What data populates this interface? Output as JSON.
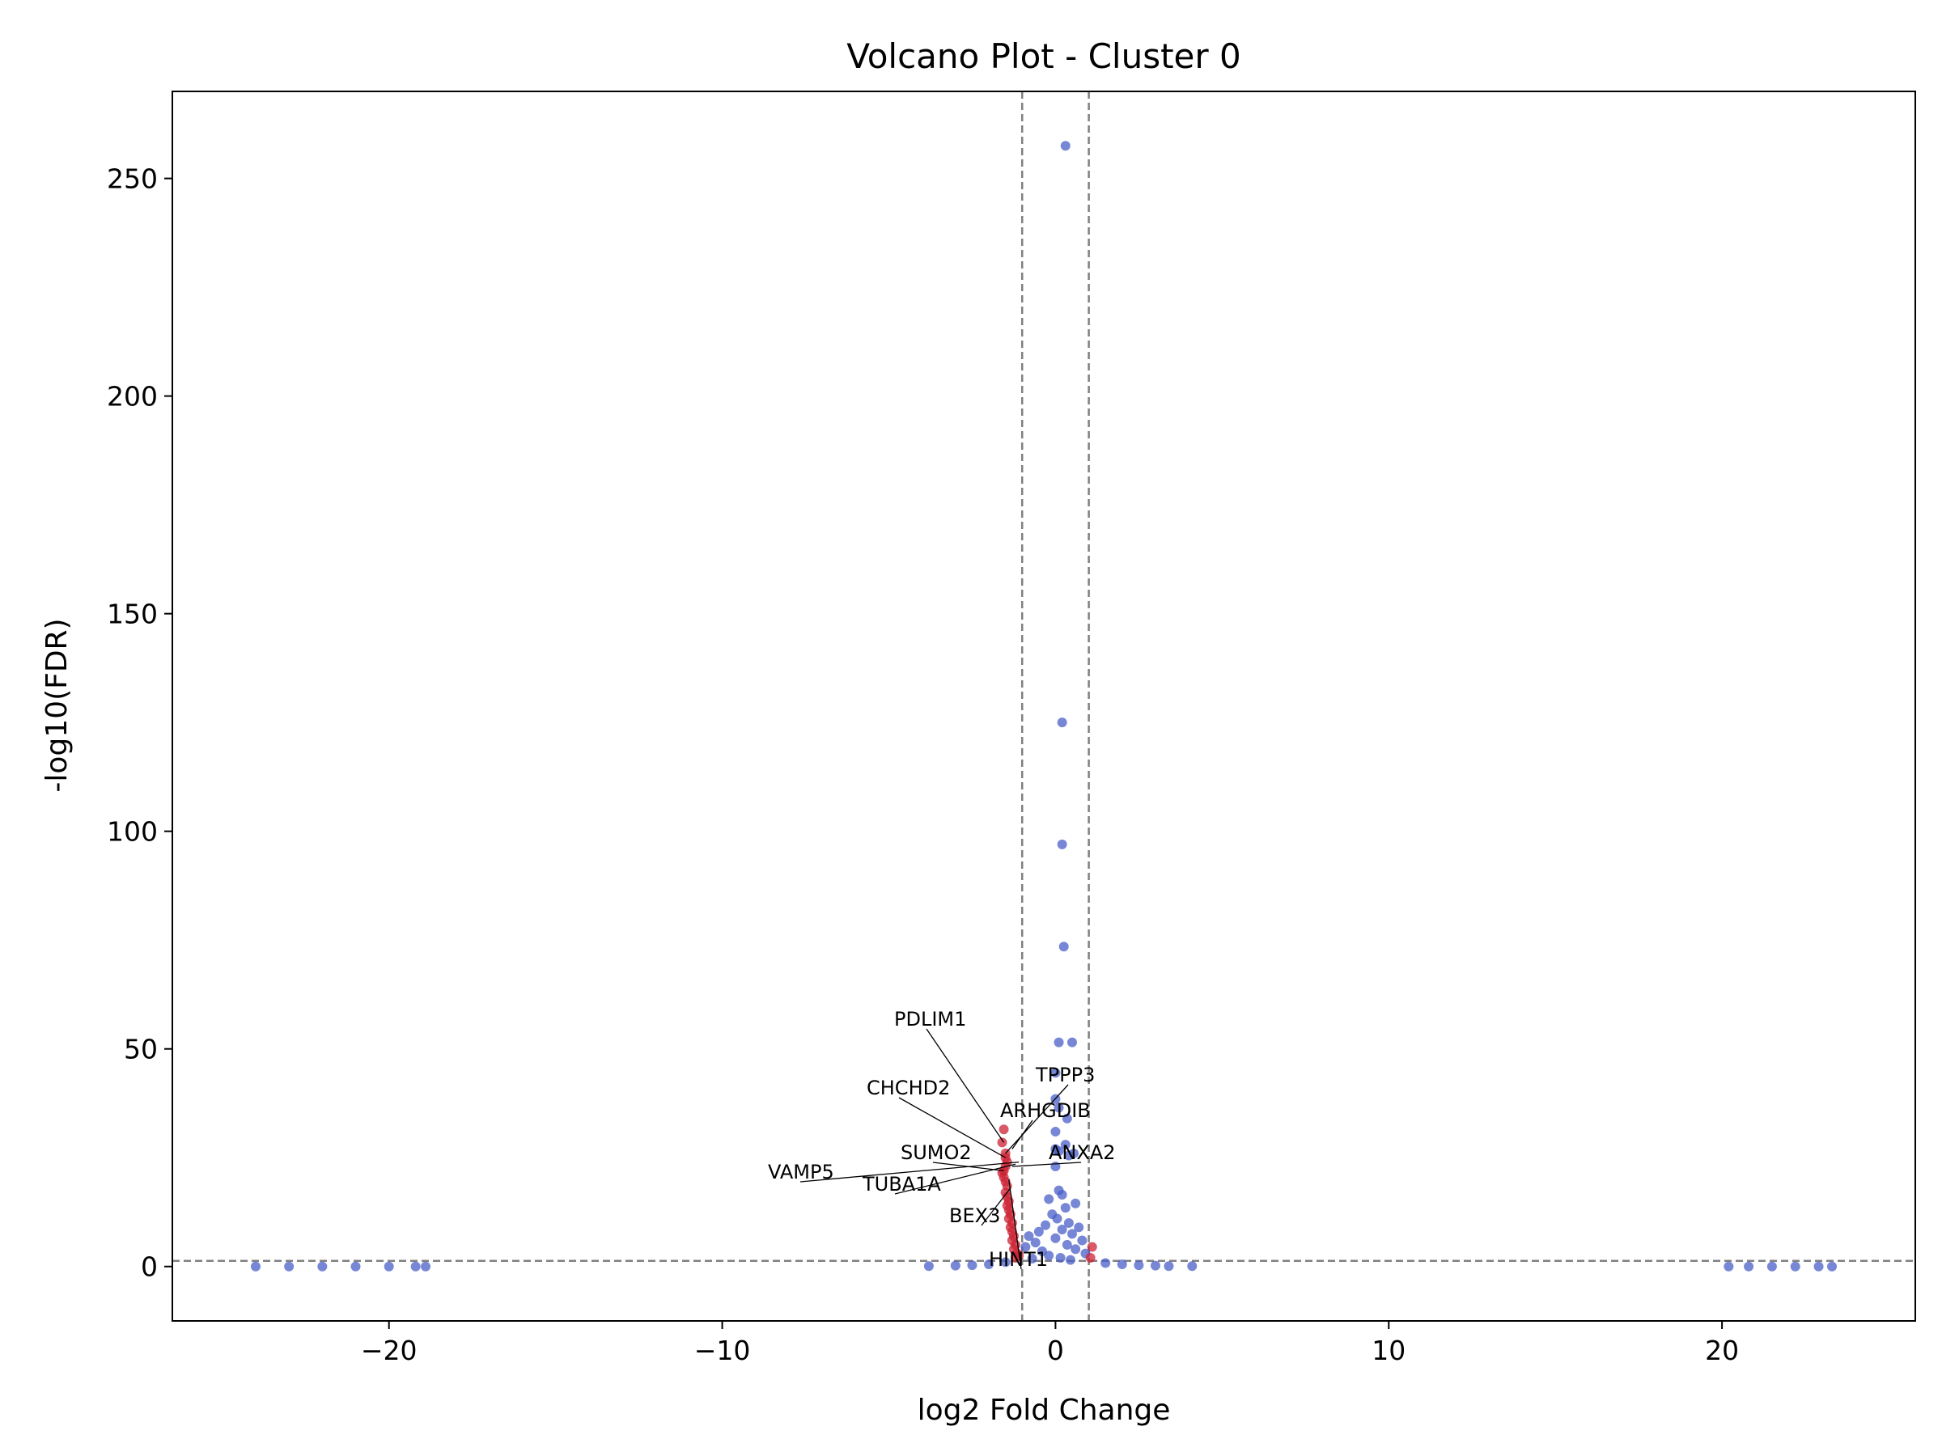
{
  "chart_data": {
    "type": "scatter",
    "title": "Volcano Plot - Cluster 0",
    "xlabel": "log2 Fold Change",
    "ylabel": "-log10(FDR)",
    "xlim": [
      -26.5,
      25.8
    ],
    "ylim": [
      -12.5,
      270
    ],
    "xticks": [
      -20,
      -10,
      0,
      10,
      20
    ],
    "yticks": [
      0,
      50,
      100,
      150,
      200,
      250
    ],
    "xtick_labels": [
      "−20",
      "−10",
      "0",
      "10",
      "20"
    ],
    "ytick_labels": [
      "0",
      "50",
      "100",
      "150",
      "200",
      "250"
    ],
    "grid": false,
    "thresholds": {
      "log2fc": [
        -1,
        1
      ],
      "neg_log10_fdr": 1.3
    },
    "colors": {
      "significant": "#cc2233",
      "not_significant": "#4a5fc8",
      "threshold": "#808080"
    },
    "series": [
      {
        "color": "#cc2233",
        "points": [
          [
            -1.55,
            31.5
          ],
          [
            -1.6,
            28.5
          ],
          [
            -1.5,
            26.0
          ],
          [
            -1.5,
            25.0
          ],
          [
            -1.45,
            24.0
          ],
          [
            -1.5,
            23.0
          ],
          [
            -1.55,
            22.0
          ],
          [
            -1.6,
            21.5
          ],
          [
            -1.55,
            20.5
          ],
          [
            -1.5,
            19.5
          ],
          [
            -1.45,
            18.5
          ],
          [
            -1.5,
            17.0
          ],
          [
            -1.45,
            16.0
          ],
          [
            -1.4,
            15.0
          ],
          [
            -1.45,
            14.0
          ],
          [
            -1.4,
            13.0
          ],
          [
            -1.35,
            12.0
          ],
          [
            -1.4,
            11.0
          ],
          [
            -1.3,
            10.0
          ],
          [
            -1.35,
            9.0
          ],
          [
            -1.3,
            8.0
          ],
          [
            -1.25,
            7.0
          ],
          [
            -1.3,
            6.0
          ],
          [
            -1.2,
            5.0
          ],
          [
            -1.25,
            4.0
          ],
          [
            -1.15,
            3.0
          ],
          [
            -1.1,
            2.5
          ],
          [
            -1.2,
            2.0
          ],
          [
            1.1,
            4.5
          ],
          [
            1.05,
            2.0
          ]
        ]
      },
      {
        "color": "#4a5fc8",
        "points": [
          [
            0.3,
            257.5
          ],
          [
            0.2,
            125.0
          ],
          [
            0.2,
            97.0
          ],
          [
            0.25,
            73.5
          ],
          [
            0.1,
            51.5
          ],
          [
            0.5,
            51.5
          ],
          [
            0.0,
            44.5
          ],
          [
            0.0,
            38.5
          ],
          [
            0.1,
            36.5
          ],
          [
            0.35,
            34.0
          ],
          [
            0.0,
            31.0
          ],
          [
            0.3,
            28.0
          ],
          [
            0.0,
            27.0
          ],
          [
            0.1,
            26.5
          ],
          [
            0.55,
            26.0
          ],
          [
            0.4,
            25.5
          ],
          [
            0.0,
            23.0
          ],
          [
            0.1,
            17.5
          ],
          [
            0.2,
            16.5
          ],
          [
            -0.2,
            15.5
          ],
          [
            0.6,
            14.5
          ],
          [
            0.3,
            13.5
          ],
          [
            -0.1,
            12.0
          ],
          [
            0.05,
            11.0
          ],
          [
            0.4,
            10.0
          ],
          [
            -0.3,
            9.5
          ],
          [
            0.7,
            9.0
          ],
          [
            0.2,
            8.5
          ],
          [
            -0.5,
            8.0
          ],
          [
            0.5,
            7.5
          ],
          [
            -0.8,
            7.0
          ],
          [
            0.0,
            6.5
          ],
          [
            0.8,
            6.0
          ],
          [
            -0.6,
            5.5
          ],
          [
            0.35,
            5.0
          ],
          [
            -0.9,
            4.5
          ],
          [
            0.6,
            4.0
          ],
          [
            -0.4,
            3.5
          ],
          [
            0.9,
            3.0
          ],
          [
            -0.2,
            2.5
          ],
          [
            0.15,
            2.0
          ],
          [
            -0.7,
            1.8
          ],
          [
            0.45,
            1.5
          ],
          [
            -1.5,
            1.0
          ],
          [
            1.5,
            0.8
          ],
          [
            -2.0,
            0.5
          ],
          [
            2.0,
            0.5
          ],
          [
            -2.5,
            0.3
          ],
          [
            2.5,
            0.3
          ],
          [
            -3.0,
            0.2
          ],
          [
            3.0,
            0.2
          ],
          [
            -3.8,
            0.1
          ],
          [
            3.4,
            0.1
          ],
          [
            4.1,
            0.1
          ],
          [
            -24.0,
            0.0
          ],
          [
            -23.0,
            0.0
          ],
          [
            -22.0,
            0.0
          ],
          [
            -21.0,
            0.0
          ],
          [
            -20.0,
            0.0
          ],
          [
            -19.2,
            0.0
          ],
          [
            -18.9,
            0.0
          ],
          [
            20.2,
            0.0
          ],
          [
            20.8,
            0.0
          ],
          [
            21.5,
            0.0
          ],
          [
            22.2,
            0.0
          ],
          [
            22.9,
            0.0
          ],
          [
            23.3,
            0.0
          ]
        ]
      }
    ],
    "annotations": [
      {
        "label": "PDLIM1",
        "x": -1.55,
        "y": 28.5
      },
      {
        "label": "TPPP3",
        "x": -1.5,
        "y": 26.0
      },
      {
        "label": "CHCHD2",
        "x": -1.5,
        "y": 25.0
      },
      {
        "label": "ARHGDIB",
        "x": -1.3,
        "y": 27.0
      },
      {
        "label": "SUMO2",
        "x": -1.55,
        "y": 22.0
      },
      {
        "label": "ANXA2",
        "x": -1.3,
        "y": 23.0
      },
      {
        "label": "VAMP5",
        "x": -1.1,
        "y": 24.0
      },
      {
        "label": "TUBA1A",
        "x": -1.2,
        "y": 23.5
      },
      {
        "label": "BEX3",
        "x": -1.35,
        "y": 18.0
      },
      {
        "label": "HINT1",
        "x": -1.4,
        "y": 20.0
      }
    ]
  }
}
